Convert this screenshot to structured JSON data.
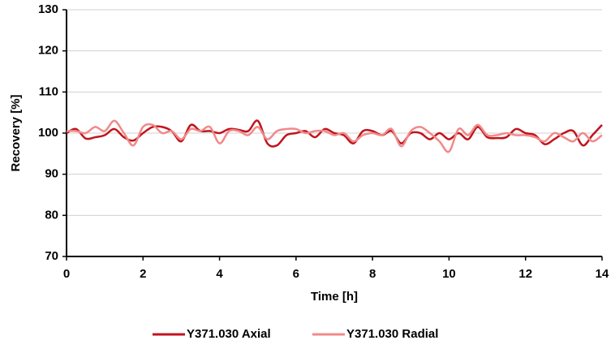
{
  "chart_data": {
    "type": "line",
    "x_label": "Time [h]",
    "y_label": "Recovery [%]",
    "x": [
      0,
      0.25,
      0.5,
      0.75,
      1,
      1.25,
      1.5,
      1.75,
      2,
      2.25,
      2.5,
      2.75,
      3,
      3.25,
      3.5,
      3.75,
      4,
      4.25,
      4.5,
      4.75,
      5,
      5.25,
      5.5,
      5.75,
      6,
      6.25,
      6.5,
      6.75,
      7,
      7.25,
      7.5,
      7.75,
      8,
      8.25,
      8.5,
      8.75,
      9,
      9.25,
      9.5,
      9.75,
      10,
      10.25,
      10.5,
      10.75,
      11,
      11.25,
      11.5,
      11.75,
      12,
      12.25,
      12.5,
      12.75,
      13,
      13.25,
      13.5,
      13.75,
      14
    ],
    "series": [
      {
        "name": "Y371.030 Axial",
        "color": "#c0141e",
        "values": [
          100,
          101,
          98.7,
          99,
          99.5,
          101,
          99,
          98.2,
          100,
          101.5,
          101.5,
          100.5,
          98,
          102,
          100.5,
          100.5,
          100,
          101,
          100.8,
          100.5,
          103,
          97.5,
          97,
          99.5,
          100,
          100.5,
          99,
          101,
          100,
          99.5,
          97.5,
          100.5,
          100.5,
          99.5,
          100.5,
          97.5,
          100,
          100,
          98.5,
          100,
          98.5,
          100,
          98.5,
          101.5,
          99,
          98.8,
          99,
          101,
          100,
          99.5,
          97.3,
          98.5,
          100,
          100.5,
          97,
          99.5,
          102
        ]
      },
      {
        "name": "Y371.030 Radial",
        "color": "#f08a8a",
        "values": [
          100.5,
          100.5,
          100,
          101.5,
          100.5,
          103,
          100,
          97,
          101.5,
          102,
          100,
          100.5,
          98.5,
          101,
          100.5,
          101.5,
          97.5,
          100.5,
          100.5,
          99.5,
          101.5,
          98.5,
          100.5,
          101,
          101,
          100,
          100.5,
          100.5,
          99.5,
          100,
          98,
          99.5,
          100,
          99.5,
          101,
          96.8,
          100.5,
          101.5,
          100,
          98,
          95.5,
          101,
          99.5,
          102,
          99.5,
          99.5,
          100,
          99.5,
          99.5,
          99,
          98,
          100,
          99,
          98,
          100,
          98,
          99.5
        ]
      }
    ],
    "xlim": [
      0,
      14
    ],
    "xticks": [
      0,
      2,
      4,
      6,
      8,
      10,
      12,
      14
    ],
    "ylim": [
      70,
      130
    ],
    "yticks": [
      70,
      80,
      90,
      100,
      110,
      120,
      130
    ],
    "grid": true,
    "legend": "bottom"
  }
}
